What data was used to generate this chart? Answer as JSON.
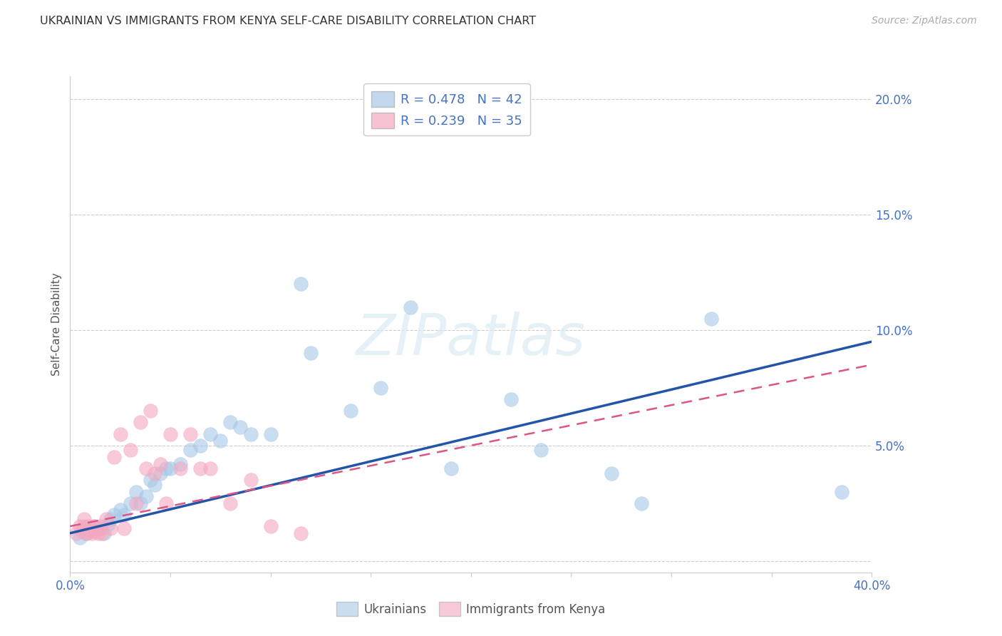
{
  "title": "UKRAINIAN VS IMMIGRANTS FROM KENYA SELF-CARE DISABILITY CORRELATION CHART",
  "source": "Source: ZipAtlas.com",
  "ylabel": "Self-Care Disability",
  "xlim": [
    0,
    0.4
  ],
  "ylim": [
    -0.005,
    0.21
  ],
  "xticks": [
    0.0,
    0.05,
    0.1,
    0.15,
    0.2,
    0.25,
    0.3,
    0.35,
    0.4
  ],
  "xticklabels": [
    "0.0%",
    "",
    "",
    "",
    "",
    "",
    "",
    "",
    "40.0%"
  ],
  "yticks": [
    0.0,
    0.05,
    0.1,
    0.15,
    0.2
  ],
  "yticklabels": [
    "",
    "5.0%",
    "10.0%",
    "15.0%",
    "20.0%"
  ],
  "watermark": "ZIPatlas",
  "legend_r1": "R = 0.478",
  "legend_n1": "N = 42",
  "legend_r2": "R = 0.239",
  "legend_n2": "N = 35",
  "blue_color": "#a8c8e8",
  "pink_color": "#f4a8c0",
  "trendline_blue": "#2255aa",
  "trendline_pink": "#dd5588",
  "blue_scatter_x": [
    0.005,
    0.007,
    0.008,
    0.01,
    0.012,
    0.015,
    0.017,
    0.019,
    0.02,
    0.022,
    0.025,
    0.027,
    0.03,
    0.033,
    0.035,
    0.038,
    0.04,
    0.042,
    0.045,
    0.048,
    0.05,
    0.055,
    0.06,
    0.065,
    0.07,
    0.075,
    0.08,
    0.085,
    0.09,
    0.1,
    0.115,
    0.12,
    0.14,
    0.155,
    0.17,
    0.19,
    0.22,
    0.235,
    0.27,
    0.285,
    0.32,
    0.385
  ],
  "blue_scatter_y": [
    0.01,
    0.015,
    0.012,
    0.013,
    0.015,
    0.014,
    0.012,
    0.016,
    0.018,
    0.02,
    0.022,
    0.02,
    0.025,
    0.03,
    0.025,
    0.028,
    0.035,
    0.033,
    0.038,
    0.04,
    0.04,
    0.042,
    0.048,
    0.05,
    0.055,
    0.052,
    0.06,
    0.058,
    0.055,
    0.055,
    0.12,
    0.09,
    0.065,
    0.075,
    0.11,
    0.04,
    0.07,
    0.048,
    0.038,
    0.025,
    0.105,
    0.03
  ],
  "pink_scatter_x": [
    0.003,
    0.005,
    0.006,
    0.007,
    0.008,
    0.009,
    0.01,
    0.011,
    0.012,
    0.013,
    0.014,
    0.015,
    0.016,
    0.018,
    0.02,
    0.022,
    0.025,
    0.027,
    0.03,
    0.033,
    0.035,
    0.038,
    0.04,
    0.042,
    0.045,
    0.048,
    0.05,
    0.055,
    0.06,
    0.065,
    0.07,
    0.08,
    0.09,
    0.1,
    0.115
  ],
  "pink_scatter_y": [
    0.012,
    0.015,
    0.013,
    0.018,
    0.012,
    0.015,
    0.013,
    0.012,
    0.015,
    0.013,
    0.012,
    0.015,
    0.012,
    0.018,
    0.014,
    0.045,
    0.055,
    0.014,
    0.048,
    0.025,
    0.06,
    0.04,
    0.065,
    0.038,
    0.042,
    0.025,
    0.055,
    0.04,
    0.055,
    0.04,
    0.04,
    0.025,
    0.035,
    0.015,
    0.012
  ],
  "trendline_blue_start_x": 0.0,
  "trendline_blue_start_y": 0.012,
  "trendline_blue_end_x": 0.4,
  "trendline_blue_end_y": 0.095,
  "trendline_pink_start_x": 0.0,
  "trendline_pink_start_y": 0.015,
  "trendline_pink_end_x": 0.4,
  "trendline_pink_end_y": 0.085
}
